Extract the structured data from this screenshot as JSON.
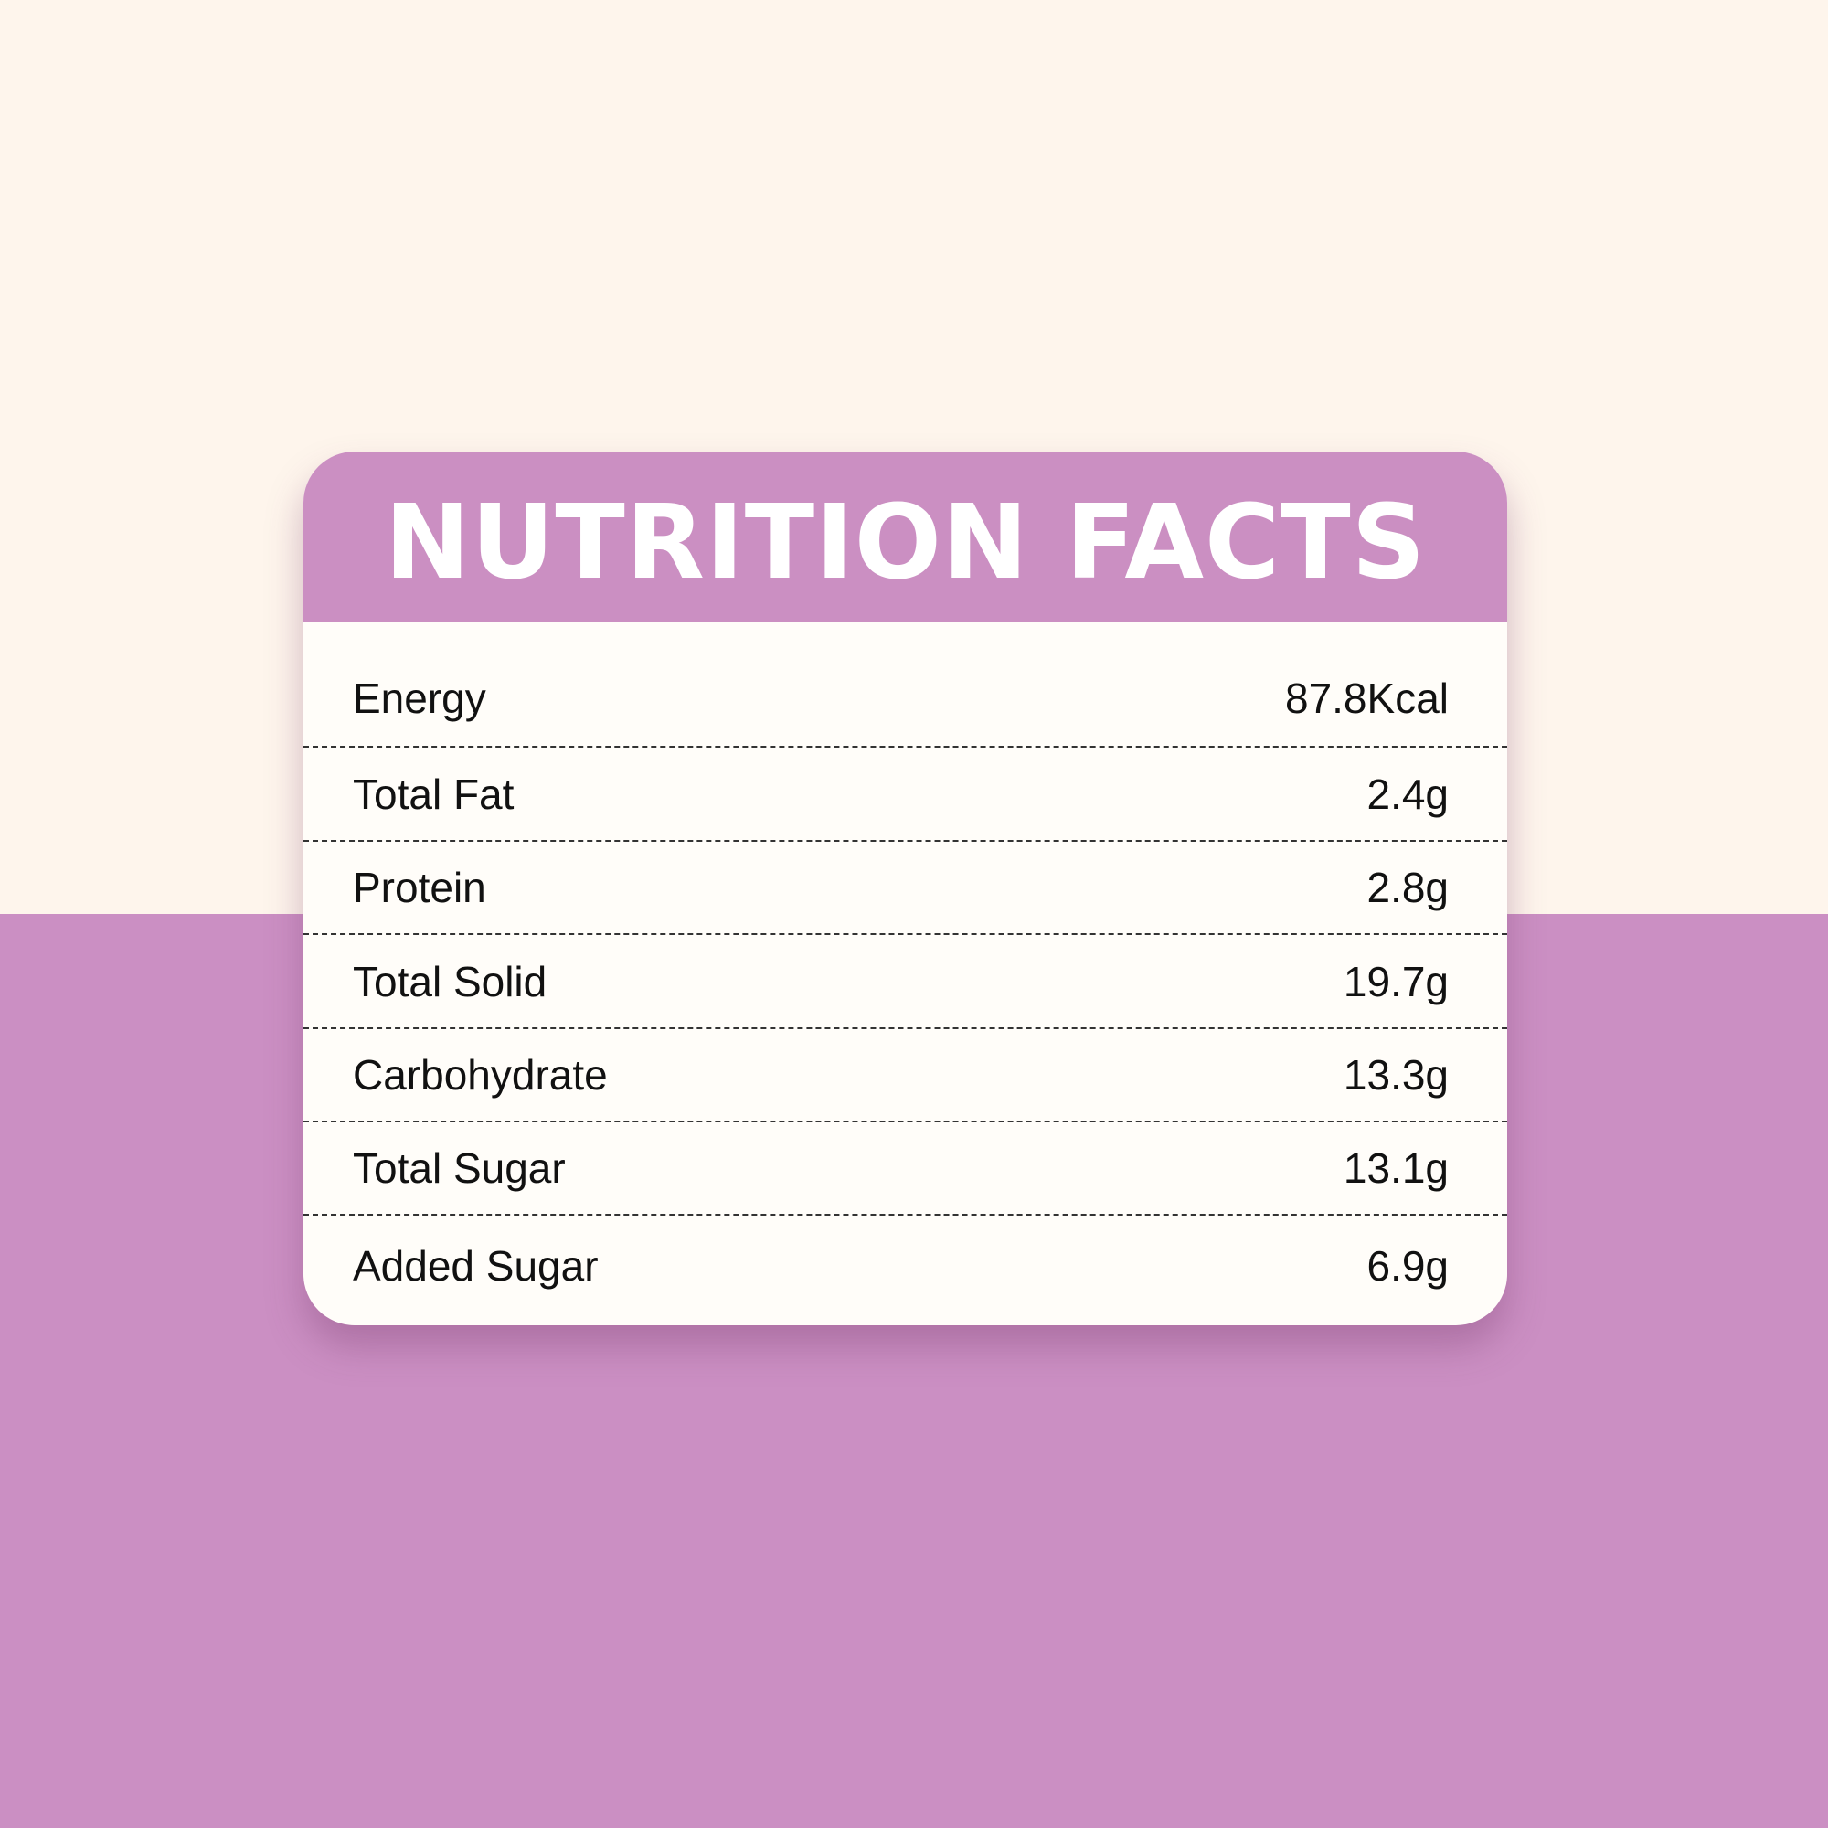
{
  "colors": {
    "accent": "#CB8FC2",
    "background_top": "#FEF5EC",
    "background_bottom": "#CB8FC3",
    "card": "#FFFDF9"
  },
  "title": "NUTRITION FACTS",
  "rows": [
    {
      "label": "Energy",
      "value": "87.8Kcal"
    },
    {
      "label": "Total Fat",
      "value": "2.4g"
    },
    {
      "label": "Protein",
      "value": "2.8g"
    },
    {
      "label": "Total Solid",
      "value": "19.7g"
    },
    {
      "label": "Carbohydrate",
      "value": "13.3g"
    },
    {
      "label": "Total Sugar",
      "value": "13.1g"
    },
    {
      "label": "Added Sugar",
      "value": "6.9g"
    }
  ]
}
